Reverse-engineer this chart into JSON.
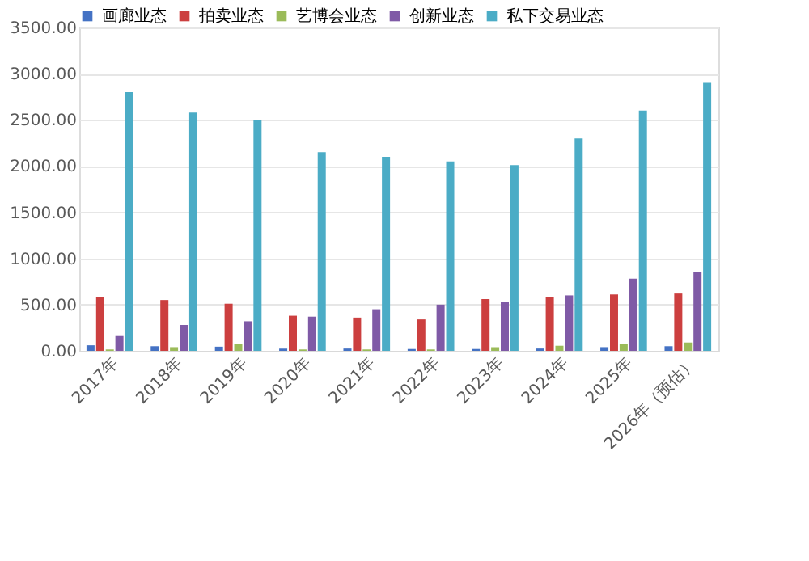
{
  "chart_data": {
    "type": "bar",
    "categories": [
      "2017年",
      "2018年",
      "2019年",
      "2020年",
      "2021年",
      "2022年",
      "2023年",
      "2024年",
      "2025年",
      "2026年（预估）"
    ],
    "series": [
      {
        "name": "画廊业态",
        "color": "#4472c4",
        "values": [
          60,
          50,
          45,
          25,
          25,
          20,
          20,
          25,
          40,
          50
        ]
      },
      {
        "name": "拍卖业态",
        "color": "#cc3f3f",
        "values": [
          580,
          550,
          510,
          380,
          360,
          340,
          560,
          580,
          610,
          620
        ]
      },
      {
        "name": "艺博会业态",
        "color": "#9bbb59",
        "values": [
          15,
          40,
          70,
          15,
          15,
          15,
          40,
          55,
          70,
          90
        ]
      },
      {
        "name": "创新业态",
        "color": "#7f5aa6",
        "values": [
          160,
          280,
          320,
          370,
          450,
          500,
          530,
          600,
          780,
          850
        ]
      },
      {
        "name": "私下交易业态",
        "color": "#4bacc6",
        "values": [
          2800,
          2580,
          2500,
          2150,
          2100,
          2050,
          2010,
          2300,
          2600,
          2900
        ]
      }
    ],
    "ylim": [
      0,
      3500
    ],
    "yticks": [
      {
        "value": 0,
        "label": "0.00"
      },
      {
        "value": 500,
        "label": "500.00"
      },
      {
        "value": 1000,
        "label": "1000.00"
      },
      {
        "value": 1500,
        "label": "1500.00"
      },
      {
        "value": 2000,
        "label": "2000.00"
      },
      {
        "value": 2500,
        "label": "2500.00"
      },
      {
        "value": 3000,
        "label": "3000.00"
      },
      {
        "value": 3500,
        "label": "3500.00"
      }
    ],
    "grid": "y",
    "legend": "top"
  }
}
